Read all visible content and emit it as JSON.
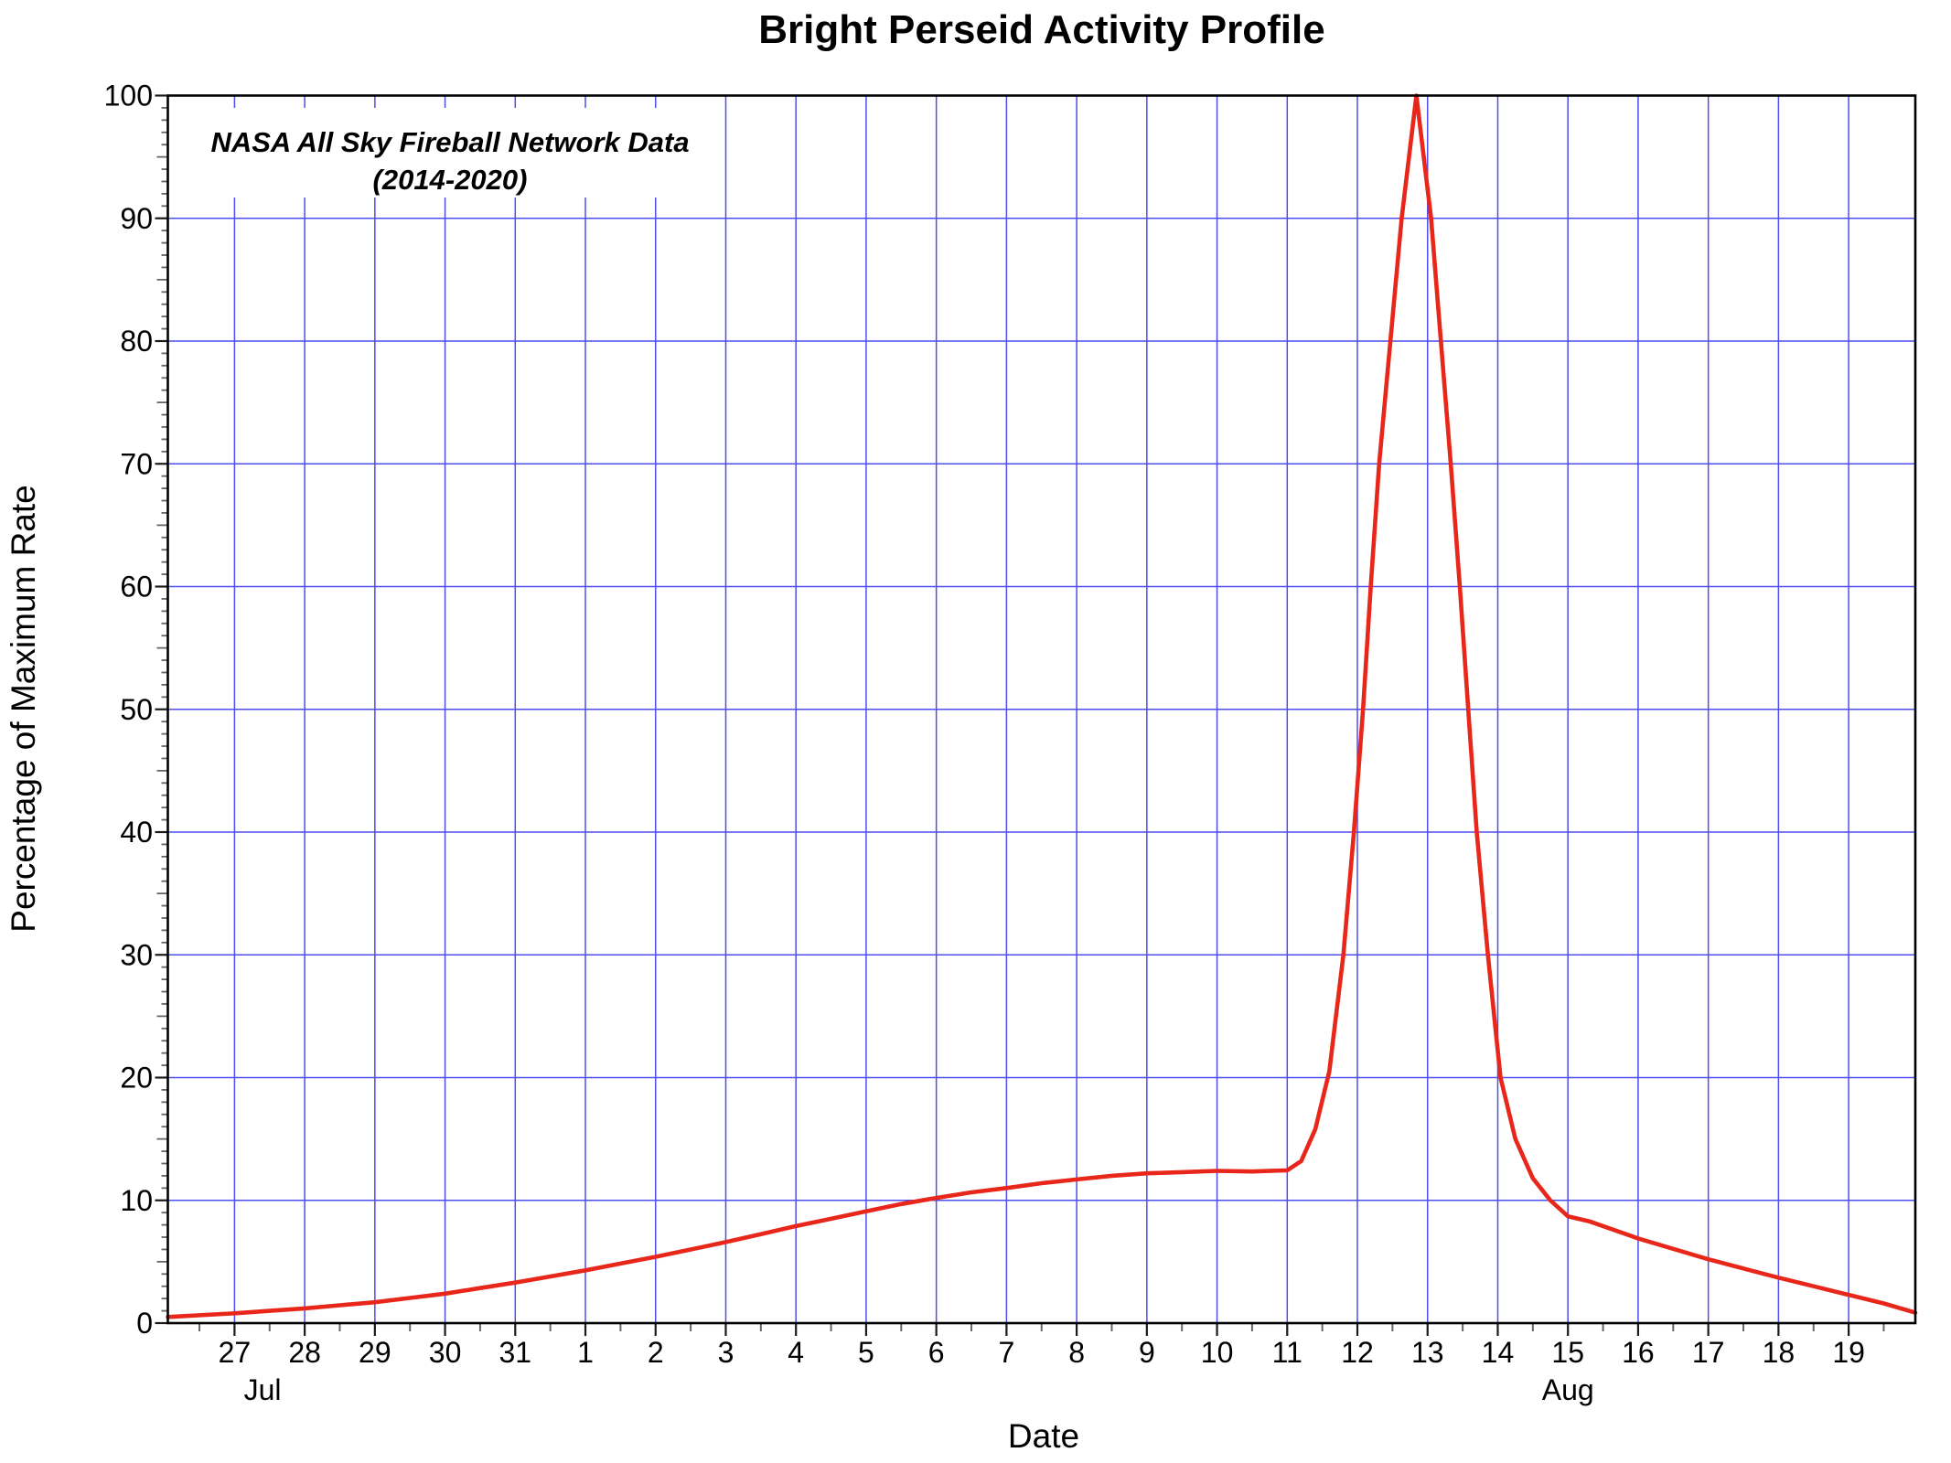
{
  "figure": {
    "title": "Bright Perseid Activity Profile",
    "annotation_line1": "NASA All Sky Fireball Network Data",
    "annotation_line2": "(2014-2020)",
    "xlabel": "Date",
    "ylabel": "Percentage of Maximum Rate"
  },
  "style": {
    "background": "#ffffff",
    "grid_color": "#4d4df0",
    "axis_color": "#000000",
    "curve_color": "#e8271a",
    "major_tick_color": "#1a1a1a",
    "minor_tick_color": "#666666"
  },
  "chart_data": {
    "type": "line",
    "title": "Bright Perseid Activity Profile",
    "annotation": [
      "NASA All Sky Fireball Network Data",
      "(2014-2020)"
    ],
    "xlabel": "Date",
    "ylabel": "Percentage of Maximum Rate",
    "x_unit": "days, 0 = Jul 27",
    "x_range": [
      -0.95,
      23.95
    ],
    "y_range": [
      0,
      100
    ],
    "grid": true,
    "y_ticks": [
      0,
      10,
      20,
      30,
      40,
      50,
      60,
      70,
      80,
      90,
      100
    ],
    "x_ticks": [
      {
        "t": 0,
        "label": "27"
      },
      {
        "t": 1,
        "label": "28"
      },
      {
        "t": 2,
        "label": "29"
      },
      {
        "t": 3,
        "label": "30"
      },
      {
        "t": 4,
        "label": "31"
      },
      {
        "t": 5,
        "label": "1"
      },
      {
        "t": 6,
        "label": "2"
      },
      {
        "t": 7,
        "label": "3"
      },
      {
        "t": 8,
        "label": "4"
      },
      {
        "t": 9,
        "label": "5"
      },
      {
        "t": 10,
        "label": "6"
      },
      {
        "t": 11,
        "label": "7"
      },
      {
        "t": 12,
        "label": "8"
      },
      {
        "t": 13,
        "label": "9"
      },
      {
        "t": 14,
        "label": "10"
      },
      {
        "t": 15,
        "label": "11"
      },
      {
        "t": 16,
        "label": "12"
      },
      {
        "t": 17,
        "label": "13"
      },
      {
        "t": 18,
        "label": "14"
      },
      {
        "t": 19,
        "label": "15"
      },
      {
        "t": 20,
        "label": "16"
      },
      {
        "t": 21,
        "label": "17"
      },
      {
        "t": 22,
        "label": "18"
      },
      {
        "t": 23,
        "label": "19"
      }
    ],
    "month_labels": [
      {
        "t": 0.4,
        "label": "Jul"
      },
      {
        "t": 19,
        "label": "Aug"
      }
    ],
    "series": [
      {
        "name": "Bright Perseid activity (% of maximum rate)",
        "color": "#e8271a",
        "points": [
          [
            -0.95,
            0.5
          ],
          [
            0,
            0.8
          ],
          [
            0.5,
            1.0
          ],
          [
            1,
            1.2
          ],
          [
            1.5,
            1.45
          ],
          [
            2,
            1.7
          ],
          [
            2.5,
            2.05
          ],
          [
            3,
            2.4
          ],
          [
            3.5,
            2.85
          ],
          [
            4,
            3.3
          ],
          [
            4.5,
            3.8
          ],
          [
            5,
            4.3
          ],
          [
            5.5,
            4.85
          ],
          [
            6,
            5.4
          ],
          [
            6.5,
            6.0
          ],
          [
            7,
            6.6
          ],
          [
            7.5,
            7.25
          ],
          [
            8,
            7.9
          ],
          [
            8.5,
            8.5
          ],
          [
            9,
            9.1
          ],
          [
            9.5,
            9.7
          ],
          [
            10,
            10.2
          ],
          [
            10.5,
            10.65
          ],
          [
            11,
            11.0
          ],
          [
            11.5,
            11.4
          ],
          [
            12,
            11.7
          ],
          [
            12.5,
            12.0
          ],
          [
            13,
            12.2
          ],
          [
            13.5,
            12.3
          ],
          [
            14,
            12.4
          ],
          [
            14.5,
            12.35
          ],
          [
            15,
            12.45
          ],
          [
            15.2,
            13.2
          ],
          [
            15.4,
            15.8
          ],
          [
            15.6,
            20.5
          ],
          [
            15.8,
            30
          ],
          [
            15.95,
            40
          ],
          [
            16.08,
            50
          ],
          [
            16.19,
            60
          ],
          [
            16.31,
            70
          ],
          [
            16.47,
            80
          ],
          [
            16.63,
            90
          ],
          [
            16.84,
            100
          ],
          [
            17.05,
            90
          ],
          [
            17.19,
            80
          ],
          [
            17.33,
            70
          ],
          [
            17.46,
            60
          ],
          [
            17.58,
            50
          ],
          [
            17.7,
            40
          ],
          [
            17.86,
            30
          ],
          [
            18.04,
            20
          ],
          [
            18.25,
            15
          ],
          [
            18.5,
            11.8
          ],
          [
            18.75,
            10
          ],
          [
            19,
            8.7
          ],
          [
            19.3,
            8.3
          ],
          [
            19.5,
            7.9
          ],
          [
            20,
            6.9
          ],
          [
            20.5,
            6.05
          ],
          [
            21,
            5.2
          ],
          [
            21.5,
            4.45
          ],
          [
            22,
            3.7
          ],
          [
            22.5,
            3.0
          ],
          [
            23,
            2.3
          ],
          [
            23.5,
            1.6
          ],
          [
            23.95,
            0.85
          ]
        ]
      }
    ]
  }
}
